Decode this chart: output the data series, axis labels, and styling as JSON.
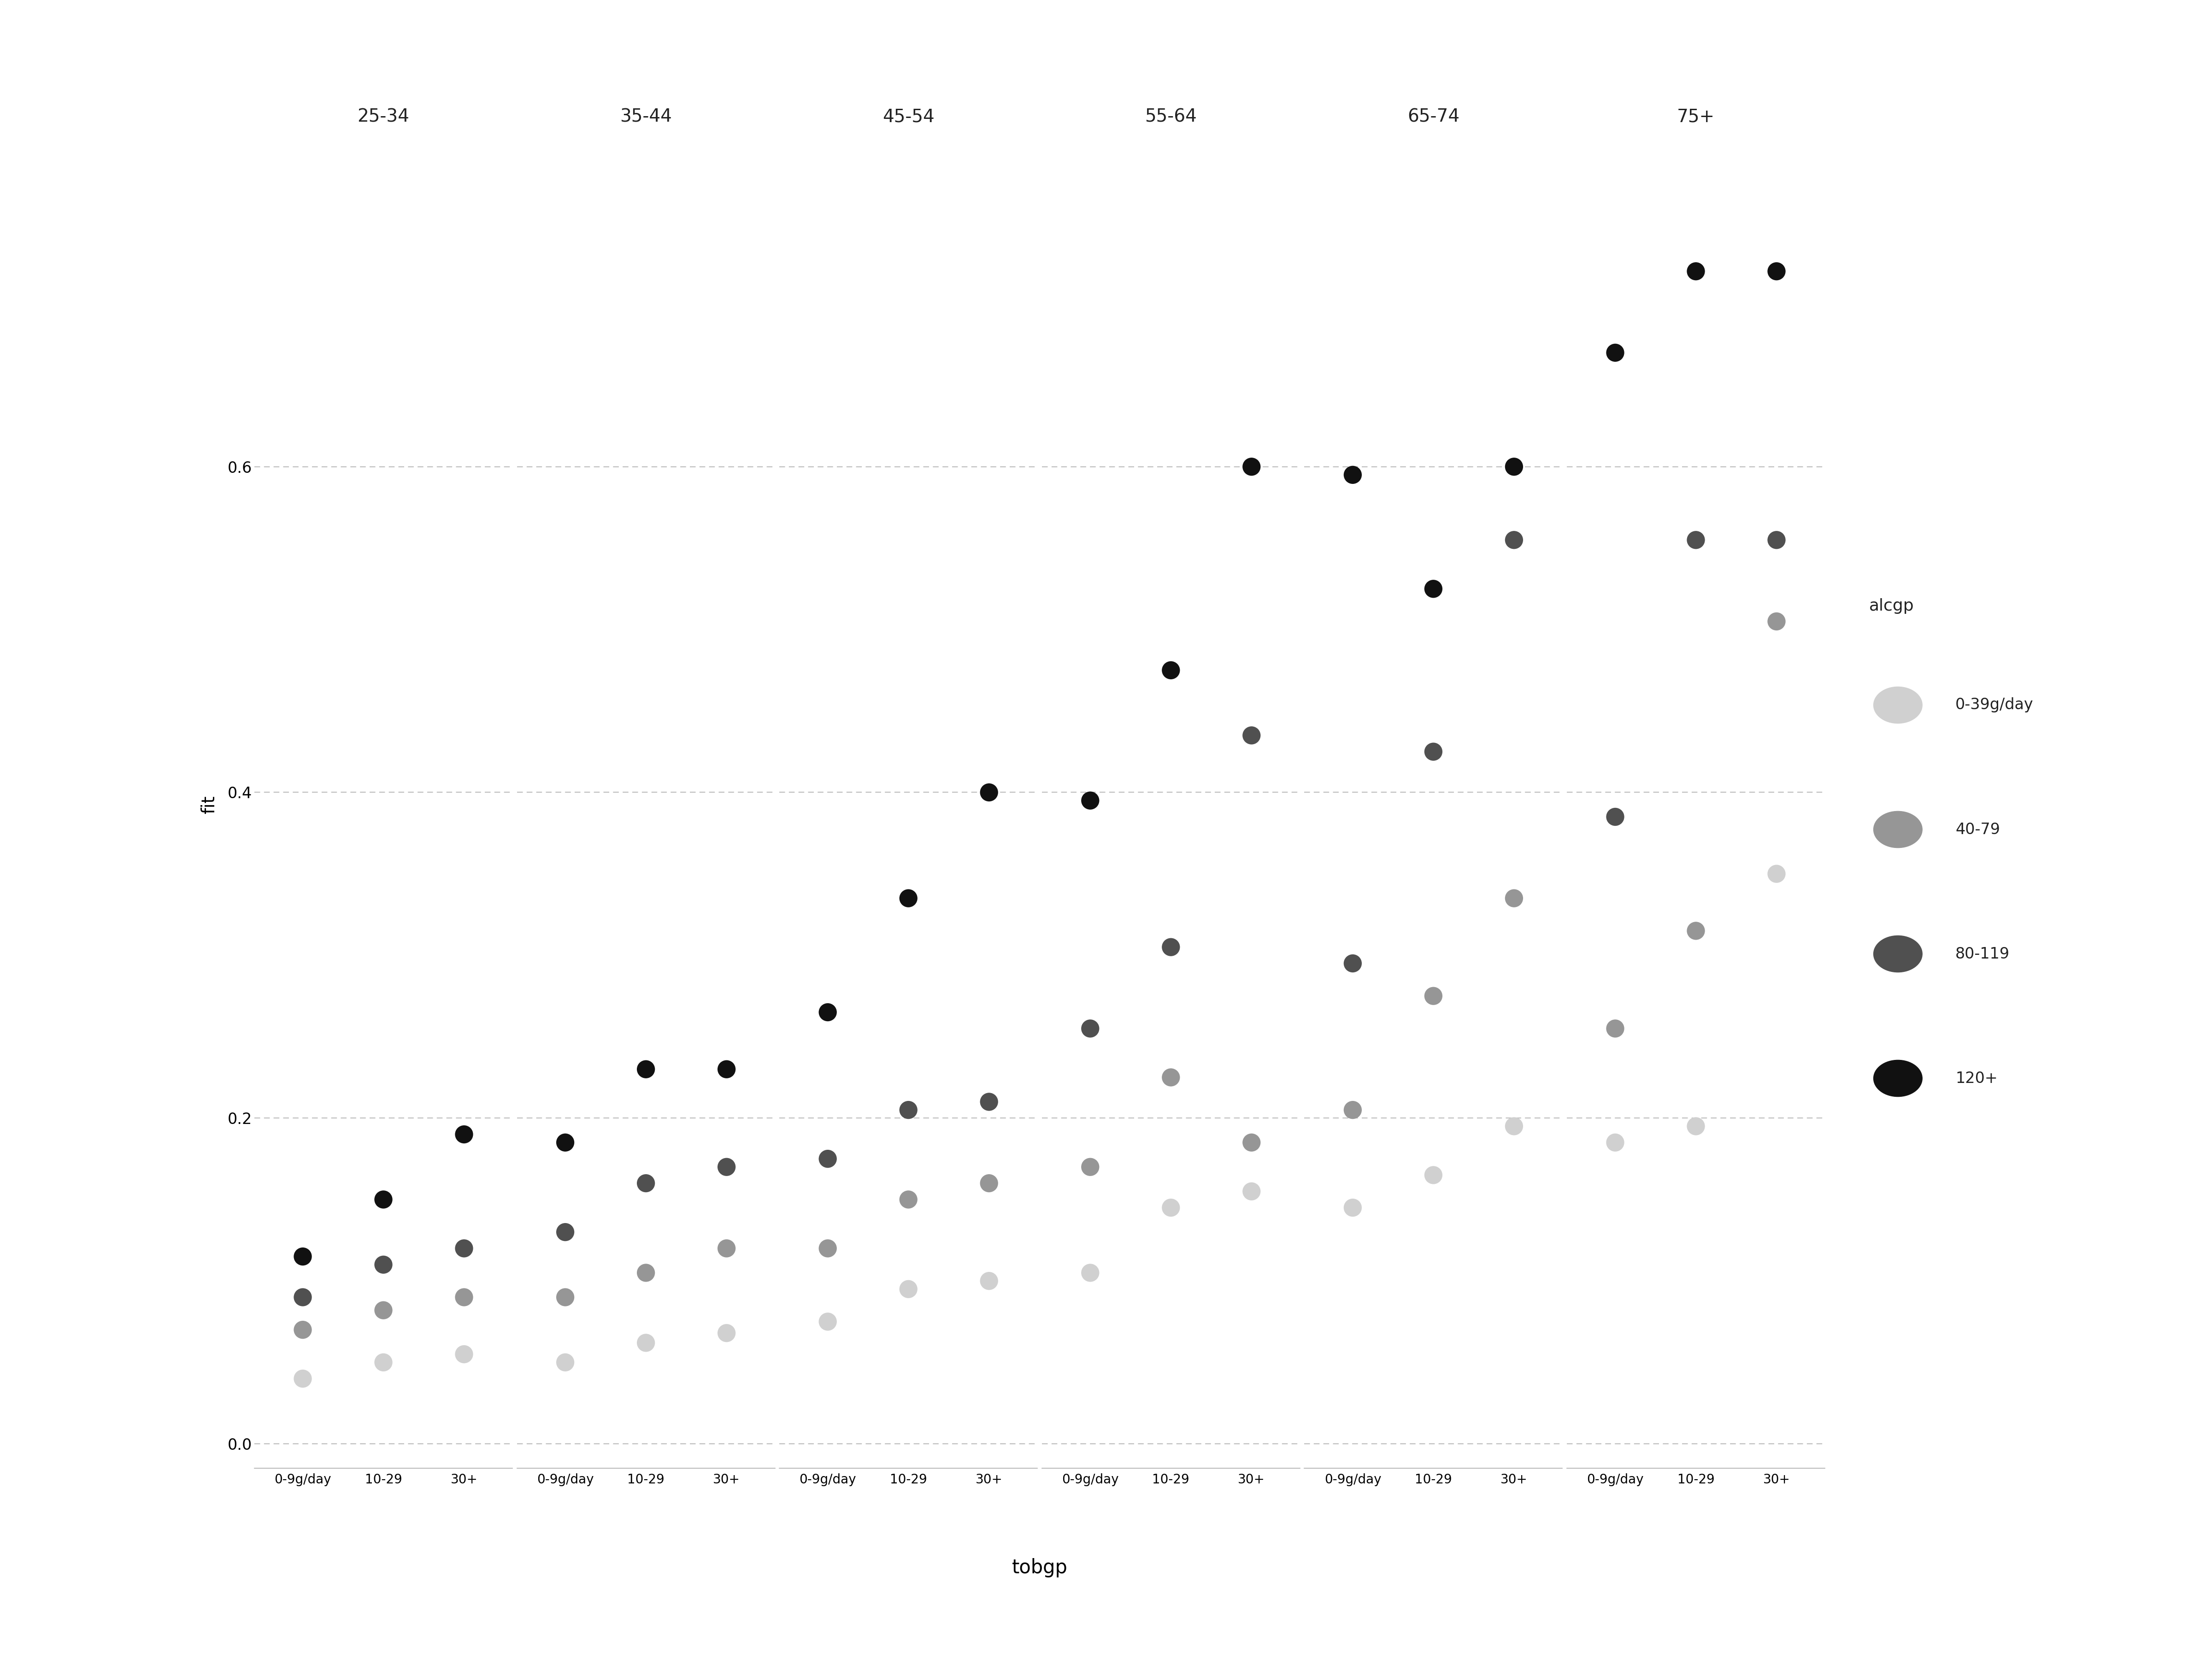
{
  "age_groups": [
    "25-34",
    "35-44",
    "45-54",
    "55-64",
    "65-74",
    "75+"
  ],
  "tobgp_cats": [
    "0-9g/day",
    "10-29",
    "30+"
  ],
  "alcgp_cats": [
    "0-39g/day",
    "40-79",
    "80-119",
    "120+"
  ],
  "alcgp_colors": [
    "#d0d0d0",
    "#969696",
    "#505050",
    "#111111"
  ],
  "ylabel": "fit",
  "xlabel": "tobgp",
  "ylim": [
    -0.015,
    0.8
  ],
  "yticks": [
    0.0,
    0.2,
    0.4,
    0.6
  ],
  "ytick_labels": [
    "0.0",
    "0.2",
    "0.4",
    "0.6"
  ],
  "grid_color": "#bbbbbb",
  "legend_title": "alcgp",
  "data": {
    "25-34": {
      "0-9g/day": [
        0.04,
        0.07,
        0.09,
        0.115
      ],
      "10-29": [
        0.05,
        0.082,
        0.11,
        0.15
      ],
      "30+": [
        0.055,
        0.09,
        0.12,
        0.19
      ]
    },
    "35-44": {
      "0-9g/day": [
        0.05,
        0.09,
        0.13,
        0.185
      ],
      "10-29": [
        0.062,
        0.105,
        0.16,
        0.23
      ],
      "30+": [
        0.068,
        0.12,
        0.17,
        0.23
      ]
    },
    "45-54": {
      "0-9g/day": [
        0.075,
        0.12,
        0.175,
        0.265
      ],
      "10-29": [
        0.095,
        0.15,
        0.205,
        0.335
      ],
      "30+": [
        0.1,
        0.16,
        0.21,
        0.4
      ]
    },
    "55-64": {
      "0-9g/day": [
        0.105,
        0.17,
        0.255,
        0.395
      ],
      "10-29": [
        0.145,
        0.225,
        0.305,
        0.475
      ],
      "30+": [
        0.155,
        0.185,
        0.435,
        0.6
      ]
    },
    "65-74": {
      "0-9g/day": [
        0.145,
        0.205,
        0.295,
        0.595
      ],
      "10-29": [
        0.165,
        0.275,
        0.425,
        0.525
      ],
      "30+": [
        0.195,
        0.335,
        0.555,
        0.6
      ]
    },
    "75+": {
      "0-9g/day": [
        0.185,
        0.255,
        0.385,
        0.67
      ],
      "10-29": [
        0.195,
        0.315,
        0.555,
        0.72
      ],
      "30+": [
        0.35,
        0.505,
        0.555,
        0.72
      ]
    }
  }
}
